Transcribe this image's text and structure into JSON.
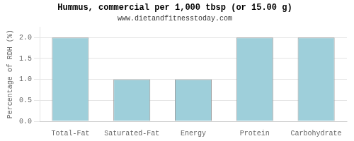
{
  "chart_data": {
    "type": "bar",
    "title": "Hummus, commercial per 1,000 tbsp (or 15.00 g)",
    "subtitle": "www.dietandfitnesstoday.com",
    "categories": [
      "Total-Fat",
      "Saturated-Fat",
      "Energy",
      "Protein",
      "Carbohydrate"
    ],
    "values": [
      2.0,
      1.0,
      1.0,
      2.0,
      2.0
    ],
    "color": "#9ECFDA",
    "ylabel": "Percentage of RDH (%)",
    "ylim": [
      0,
      2.25
    ],
    "yticks": [
      {
        "value": 0,
        "label": "0.0"
      },
      0.5,
      {
        "value": 1,
        "label": "1.0"
      },
      1.5,
      {
        "value": 2,
        "label": "2.0"
      }
    ],
    "grid": true
  }
}
